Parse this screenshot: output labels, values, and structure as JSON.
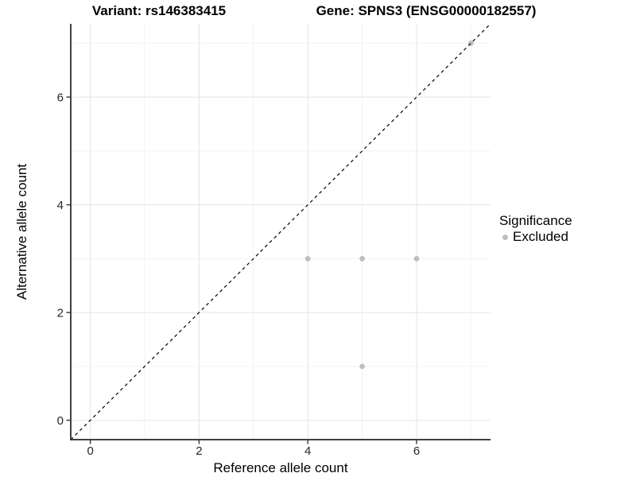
{
  "header": {
    "title_left": "Variant: rs146383415",
    "title_right": "Gene: SPNS3 (ENSG00000182557)"
  },
  "chart_data": {
    "type": "scatter",
    "xlabel": "Reference allele count",
    "ylabel": "Alternative allele count",
    "xlim": [
      -0.36,
      7.36
    ],
    "ylim": [
      -0.36,
      7.36
    ],
    "x_major_ticks": [
      0,
      2,
      4,
      6
    ],
    "y_major_ticks": [
      0,
      2,
      4,
      6
    ],
    "x_minor_grid": [
      1,
      3,
      5,
      7
    ],
    "y_minor_grid": [
      1,
      3,
      5,
      7
    ],
    "grid": true,
    "series": [
      {
        "name": "Excluded",
        "color": "#bebebe",
        "points": [
          [
            4,
            3
          ],
          [
            5,
            3
          ],
          [
            6,
            3
          ],
          [
            5,
            1
          ],
          [
            7,
            7
          ]
        ]
      }
    ],
    "reference_line": {
      "slope": 1,
      "intercept": 0,
      "style": "dashed",
      "color": "#000000"
    },
    "legend": {
      "title": "Significance",
      "position": "right",
      "entries": [
        {
          "label": "Excluded",
          "color": "#bebebe"
        }
      ]
    }
  },
  "colors": {
    "grid_major": "#e4e4e4",
    "grid_minor": "#f2f2f2",
    "axis_line": "#404040",
    "tick_text": "#262626",
    "background": "#ffffff"
  }
}
